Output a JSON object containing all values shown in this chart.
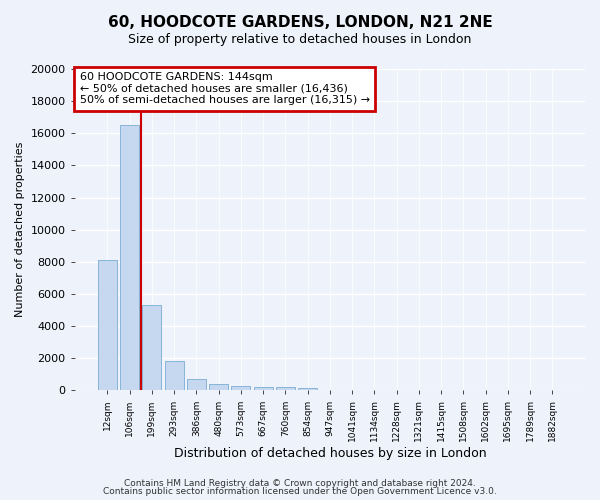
{
  "title_line1": "60, HOODCOTE GARDENS, LONDON, N21 2NE",
  "title_line2": "Size of property relative to detached houses in London",
  "xlabel": "Distribution of detached houses by size in London",
  "ylabel": "Number of detached properties",
  "categories": [
    "12sqm",
    "106sqm",
    "199sqm",
    "293sqm",
    "386sqm",
    "480sqm",
    "573sqm",
    "667sqm",
    "760sqm",
    "854sqm",
    "947sqm",
    "1041sqm",
    "1134sqm",
    "1228sqm",
    "1321sqm",
    "1415sqm",
    "1508sqm",
    "1602sqm",
    "1695sqm",
    "1789sqm",
    "1882sqm"
  ],
  "values": [
    8100,
    16500,
    5300,
    1850,
    680,
    370,
    270,
    210,
    180,
    150,
    0,
    0,
    0,
    0,
    0,
    0,
    0,
    0,
    0,
    0,
    0
  ],
  "bar_color": "#c5d8f0",
  "bar_edge_color": "#7aadd4",
  "vline_color": "#cc0000",
  "annotation_box_text_line1": "60 HOODCOTE GARDENS: 144sqm",
  "annotation_box_text_line2": "← 50% of detached houses are smaller (16,436)",
  "annotation_box_text_line3": "50% of semi-detached houses are larger (16,315) →",
  "annotation_box_color": "#cc0000",
  "annotation_box_bg": "#ffffff",
  "ylim": [
    0,
    20000
  ],
  "yticks": [
    0,
    2000,
    4000,
    6000,
    8000,
    10000,
    12000,
    14000,
    16000,
    18000,
    20000
  ],
  "ytick_labels": [
    "0",
    "2000",
    "4000",
    "6000",
    "8000",
    "10000",
    "12000",
    "14000",
    "16000",
    "18000",
    "20000"
  ],
  "footer_line1": "Contains HM Land Registry data © Crown copyright and database right 2024.",
  "footer_line2": "Contains public sector information licensed under the Open Government Licence v3.0.",
  "bg_color": "#eef2fa",
  "plot_bg_color": "#eef2fa",
  "grid_color": "#ffffff",
  "title_fontsize": 11,
  "subtitle_fontsize": 9,
  "ylabel_fontsize": 8,
  "xlabel_fontsize": 9,
  "ytick_fontsize": 8,
  "xtick_fontsize": 6.5,
  "annotation_fontsize": 8,
  "footer_fontsize": 6.5
}
